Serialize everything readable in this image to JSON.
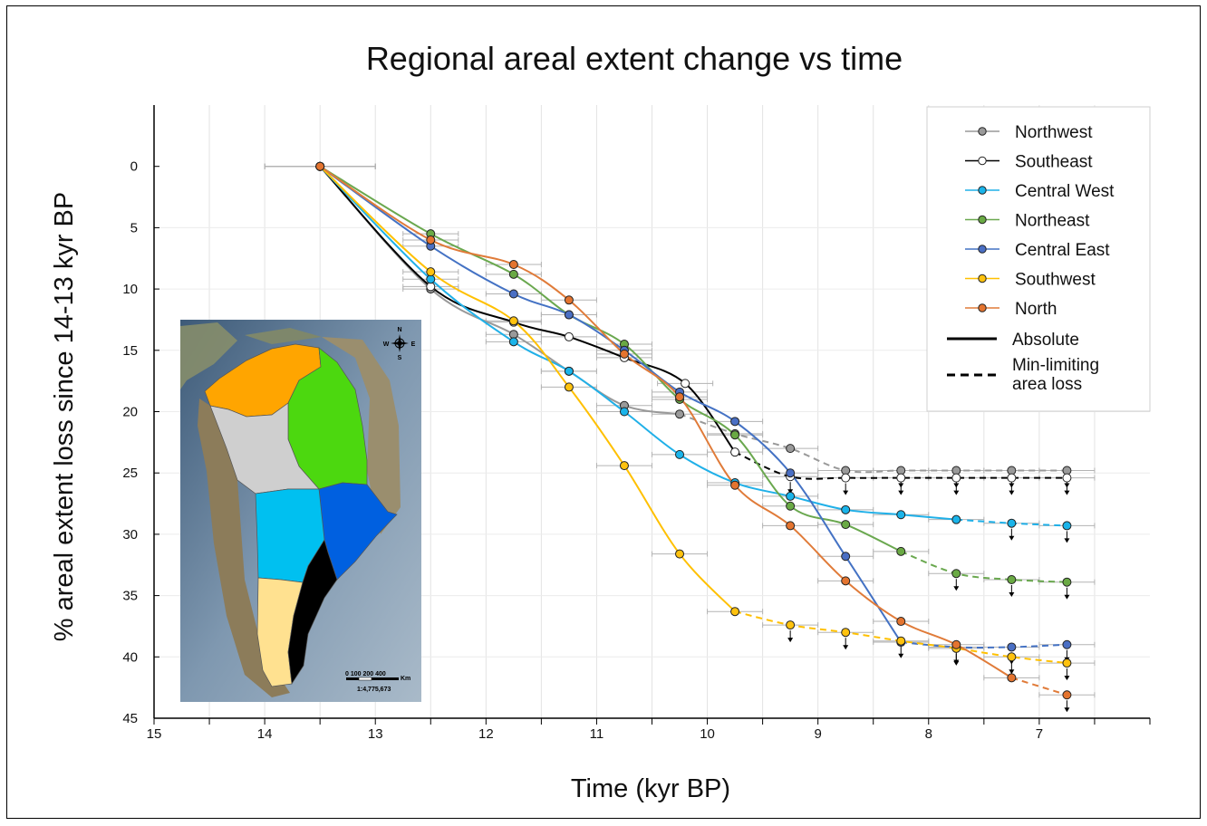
{
  "chart_data": {
    "type": "line",
    "title": "Regional areal extent change vs time",
    "xlabel": "Time (kyr BP)",
    "ylabel": "% areal extent loss since 14-13 kyr BP",
    "xlim": [
      15,
      6
    ],
    "ylim": [
      45,
      -5
    ],
    "x_ticks": [
      "15",
      "14",
      "13",
      "12",
      "11",
      "10",
      "9",
      "8",
      "7"
    ],
    "y_ticks": [
      "0",
      "5",
      "10",
      "15",
      "20",
      "25",
      "30",
      "35",
      "40",
      "45"
    ],
    "grid": true,
    "legend_position": "top-right",
    "series": [
      {
        "name": "Northwest",
        "color": "#999999",
        "marker": "#9a9a9a",
        "points": [
          [
            13.5,
            0
          ],
          [
            12.5,
            10
          ],
          [
            11.75,
            13.7
          ],
          [
            11.25,
            16.7
          ],
          [
            10.75,
            19.5
          ],
          [
            10.25,
            20.2
          ],
          [
            9.75,
            21.8
          ],
          [
            9.25,
            23
          ],
          [
            8.75,
            24.8
          ],
          [
            8.25,
            24.8
          ],
          [
            7.75,
            24.8
          ],
          [
            7.25,
            24.8
          ],
          [
            6.75,
            24.8
          ]
        ],
        "solid_until": 5,
        "min_from": 9,
        "arrows_from": 9
      },
      {
        "name": "Southeast",
        "color": "#000000",
        "marker": "#ffffff",
        "points": [
          [
            13.5,
            0
          ],
          [
            12.5,
            9.8
          ],
          [
            11.75,
            12.7
          ],
          [
            11.25,
            13.9
          ],
          [
            10.75,
            15.6
          ],
          [
            10.2,
            17.7
          ],
          [
            9.75,
            23.3
          ],
          [
            9.25,
            25.3
          ],
          [
            8.75,
            25.4
          ],
          [
            8.25,
            25.4
          ],
          [
            7.75,
            25.4
          ],
          [
            7.25,
            25.4
          ],
          [
            6.75,
            25.4
          ]
        ],
        "solid_until": 6,
        "min_from": 7,
        "arrows_from": 7
      },
      {
        "name": "Central West",
        "color": "#20b0e8",
        "marker": "#1ab4ea",
        "points": [
          [
            13.5,
            0
          ],
          [
            12.5,
            9.2
          ],
          [
            11.75,
            14.3
          ],
          [
            11.25,
            16.7
          ],
          [
            10.75,
            20
          ],
          [
            10.25,
            23.5
          ],
          [
            9.75,
            25.8
          ],
          [
            9.25,
            26.9
          ],
          [
            8.75,
            28
          ],
          [
            8.25,
            28.4
          ],
          [
            7.75,
            28.8
          ],
          [
            7.25,
            29.1
          ],
          [
            6.75,
            29.3
          ]
        ],
        "solid_until": 10,
        "min_from": 11,
        "arrows_from": 11
      },
      {
        "name": "Northeast",
        "color": "#6aa84f",
        "marker": "#6aaa44",
        "points": [
          [
            13.5,
            0
          ],
          [
            12.5,
            5.5
          ],
          [
            11.75,
            8.8
          ],
          [
            11.25,
            12.1
          ],
          [
            10.75,
            14.5
          ],
          [
            10.25,
            19
          ],
          [
            9.75,
            21.9
          ],
          [
            9.25,
            27.7
          ],
          [
            8.75,
            29.2
          ],
          [
            8.25,
            31.4
          ],
          [
            7.75,
            33.2
          ],
          [
            7.25,
            33.7
          ],
          [
            6.75,
            33.9
          ]
        ],
        "solid_until": 9,
        "min_from": 10,
        "arrows_from": 10
      },
      {
        "name": "Central East",
        "color": "#4472c4",
        "marker": "#4a6fc4",
        "points": [
          [
            13.5,
            0
          ],
          [
            12.5,
            6.5
          ],
          [
            11.75,
            10.4
          ],
          [
            11.25,
            12.1
          ],
          [
            10.75,
            15
          ],
          [
            10.25,
            18.4
          ],
          [
            9.75,
            20.8
          ],
          [
            9.25,
            25
          ],
          [
            8.75,
            31.8
          ],
          [
            8.25,
            38.8
          ],
          [
            7.75,
            39.2
          ],
          [
            7.25,
            39.2
          ],
          [
            6.75,
            39
          ]
        ],
        "solid_until": 9,
        "min_from": 10,
        "arrows_from": 10
      },
      {
        "name": "Southwest",
        "color": "#ffc000",
        "marker": "#ffc20e",
        "points": [
          [
            13.5,
            0
          ],
          [
            12.5,
            8.6
          ],
          [
            11.75,
            12.6
          ],
          [
            11.25,
            18
          ],
          [
            10.75,
            24.4
          ],
          [
            10.25,
            31.6
          ],
          [
            9.75,
            36.3
          ],
          [
            9.25,
            37.4
          ],
          [
            8.75,
            38
          ],
          [
            8.25,
            38.7
          ],
          [
            7.75,
            39.3
          ],
          [
            7.25,
            40
          ],
          [
            6.75,
            40.5
          ]
        ],
        "solid_until": 6,
        "min_from": 7,
        "arrows_from": 7
      },
      {
        "name": "North",
        "color": "#e07b39",
        "marker": "#e4742f",
        "points": [
          [
            13.5,
            0
          ],
          [
            12.5,
            6
          ],
          [
            11.75,
            8
          ],
          [
            11.25,
            10.9
          ],
          [
            10.75,
            15.3
          ],
          [
            10.25,
            18.8
          ],
          [
            9.75,
            26
          ],
          [
            9.25,
            29.3
          ],
          [
            8.75,
            33.8
          ],
          [
            8.25,
            37.1
          ],
          [
            7.75,
            39
          ],
          [
            7.25,
            41.7
          ],
          [
            6.75,
            43.1
          ]
        ],
        "solid_until": 11,
        "min_from": 12,
        "arrows_from": 12
      }
    ],
    "legend": {
      "series_labels": [
        "Northwest",
        "Southeast",
        "Central West",
        "Northeast",
        "Central East",
        "Southwest",
        "North"
      ],
      "absolute_label": "Absolute",
      "min_label_line1": "Min-limiting",
      "min_label_line2": "area loss"
    }
  },
  "inset_map": {
    "scale_numbers": "0  100 200        400",
    "scale_unit": "Km",
    "scale_ratio": "1:4,775,673",
    "compass": {
      "n": "N",
      "s": "S",
      "e": "E",
      "w": "W"
    },
    "region_colors": {
      "north": "#ffa500",
      "northwest": "#cfcfcf",
      "northeast": "#4cd80f",
      "central_west": "#00c0f0",
      "central_east": "#0060e0",
      "southwest": "#ffe190",
      "southeast": "#000000"
    }
  }
}
